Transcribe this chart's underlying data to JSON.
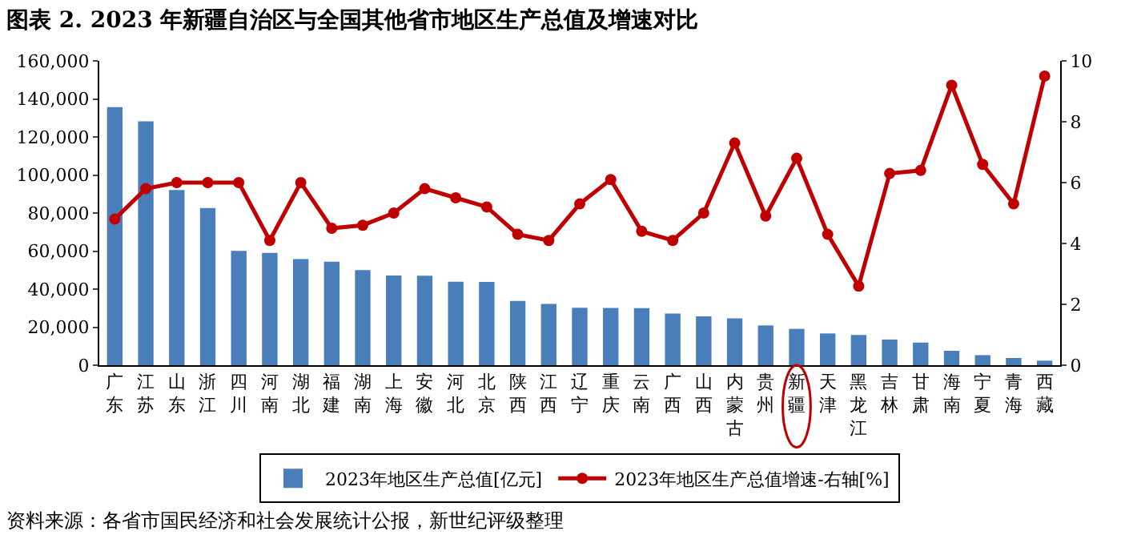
{
  "chart_data": {
    "type": "bar",
    "title": "图表 2. 2023 年新疆自治区与全国其他省市地区生产总值及增速对比",
    "categories": [
      "广东",
      "江苏",
      "山东",
      "浙江",
      "四川",
      "河南",
      "湖北",
      "福建",
      "湖南",
      "上海",
      "安徽",
      "河北",
      "北京",
      "陕西",
      "江西",
      "辽宁",
      "重庆",
      "云南",
      "广西",
      "山西",
      "内蒙古",
      "贵州",
      "新疆",
      "天津",
      "黑龙江",
      "吉林",
      "甘肃",
      "海南",
      "宁夏",
      "青海",
      "西藏"
    ],
    "series": [
      {
        "name": "2023年地区生产总值[亿元]",
        "color": "#4a7ebb",
        "values": [
          135700,
          128200,
          92100,
          82600,
          60100,
          59100,
          55800,
          54400,
          50000,
          47200,
          47100,
          43900,
          43800,
          33800,
          32200,
          30200,
          30100,
          30000,
          27200,
          25700,
          24600,
          20900,
          19100,
          16700,
          15900,
          13500,
          11900,
          7600,
          5300,
          3800,
          2400
        ]
      },
      {
        "name": "2023年地区生产总值增速-右轴[%]",
        "type": "line",
        "axis": "y2",
        "color": "#c00000",
        "marker": "circle",
        "values": [
          4.8,
          5.8,
          6.0,
          6.0,
          6.0,
          4.1,
          6.0,
          4.5,
          4.6,
          5.0,
          5.8,
          5.5,
          5.2,
          4.3,
          4.1,
          5.3,
          6.1,
          4.4,
          4.1,
          5.0,
          7.3,
          4.9,
          6.8,
          4.3,
          2.6,
          6.3,
          6.4,
          9.2,
          6.6,
          5.3,
          9.5
        ]
      }
    ],
    "ylim": [
      0,
      160000
    ],
    "yticks": [
      0,
      {
        "value": 20000,
        "label": "20,000"
      },
      {
        "value": 40000,
        "label": "40,000"
      },
      {
        "value": 60000,
        "label": "60,000"
      },
      {
        "value": 80000,
        "label": "80,000"
      },
      {
        "value": 100000,
        "label": "100,000"
      },
      {
        "value": 120000,
        "label": "120,000"
      },
      {
        "value": 140000,
        "label": "140,000"
      },
      {
        "value": 160000,
        "label": "160,000"
      }
    ],
    "y2lim": [
      0,
      10
    ],
    "y2ticks": [
      0,
      2,
      4,
      6,
      8,
      10
    ],
    "grid": false,
    "legend": "bottom",
    "annotations": [
      "资料来源：各省市国民经济和社会发展统计公报，新世纪评级整理"
    ]
  }
}
